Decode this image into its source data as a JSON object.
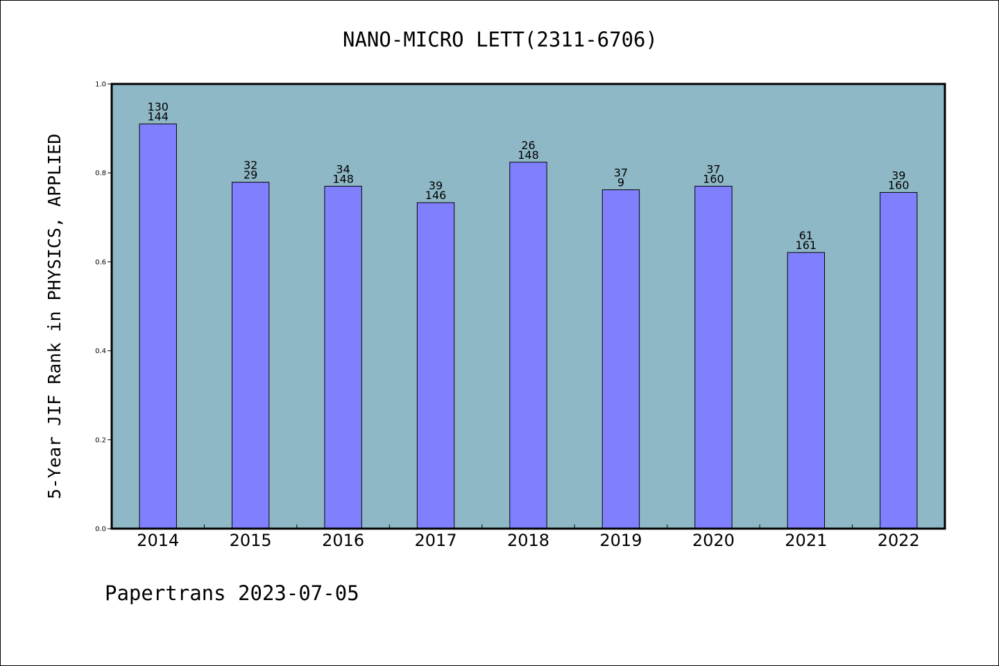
{
  "chart_data": {
    "type": "bar",
    "title": "NANO-MICRO LETT(2311-6706)",
    "ylabel": "5-Year JIF Rank in PHYSICS, APPLIED",
    "xlabel": "",
    "ylim": [
      0,
      1.0
    ],
    "yticks": [
      "0.0",
      "0.2",
      "0.4",
      "0.6",
      "0.8",
      "1.0"
    ],
    "categories": [
      "2014",
      "2015",
      "2016",
      "2017",
      "2018",
      "2019",
      "2020",
      "2021",
      "2022"
    ],
    "values": [
      0.91,
      0.779,
      0.77,
      0.733,
      0.824,
      0.762,
      0.77,
      0.621,
      0.756
    ],
    "labels_top": [
      "130",
      "32",
      "34",
      "39",
      "26",
      "37",
      "37",
      "61",
      "39"
    ],
    "labels_bottom": [
      "144",
      "29",
      "148",
      "146",
      "148",
      "9",
      "160",
      "161",
      "160"
    ],
    "colors": {
      "plot_background": "#8fb8c6",
      "bar_fill": "#8080ff",
      "bar_stroke": "#000000"
    },
    "grid": false,
    "legend": "none"
  },
  "footer": {
    "text": "Papertrans 2023-07-05"
  }
}
